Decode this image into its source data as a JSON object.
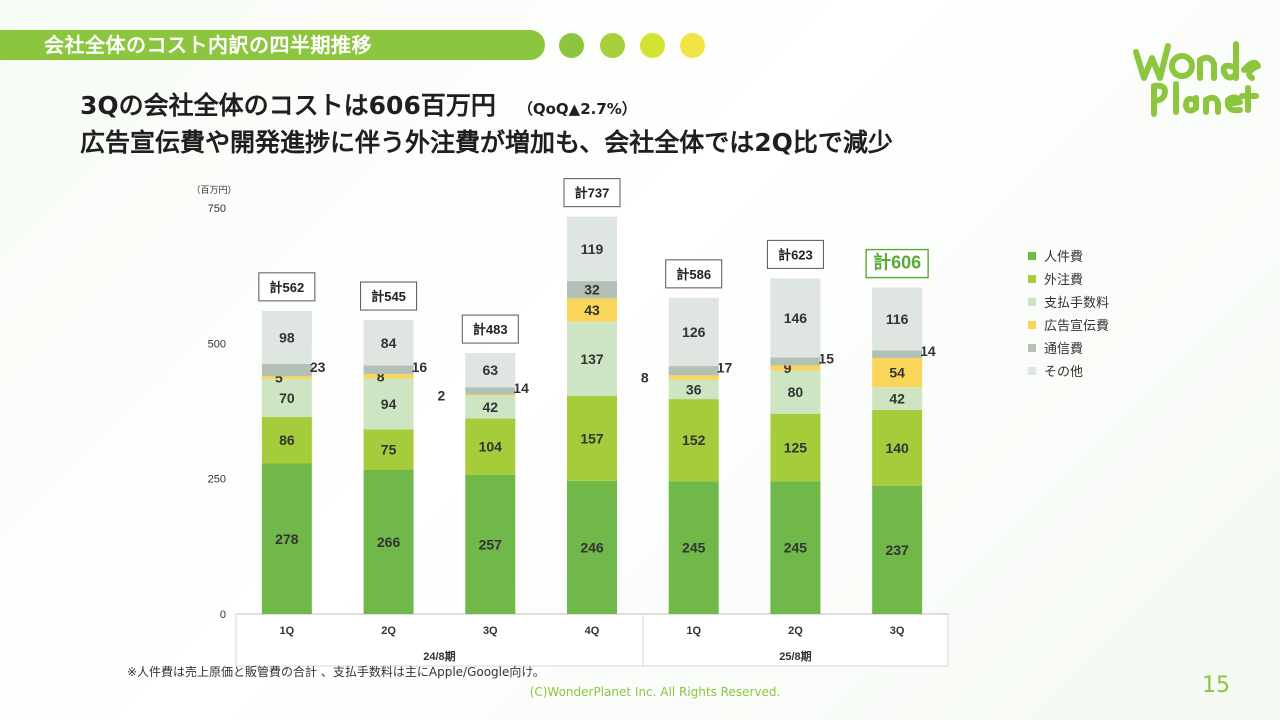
{
  "header": {
    "title": "会社全体のコスト内訳の四半期推移"
  },
  "header_dots": [
    "#8cc63f",
    "#a6cf3a",
    "#d4e333",
    "#f2e347"
  ],
  "logo": {
    "text": "Wonder Planet",
    "color": "#8cc63f"
  },
  "headline": {
    "line1": "3Qの会社全体のコストは606百万円",
    "qoq": "（QoQ▲2.7%）",
    "line2": "広告宣伝費や開発進捗に伴う外注費が増加も、会社全体では2Q比で減少"
  },
  "chart_data": {
    "type": "bar",
    "stacked": true,
    "unit_label": "（百万円）",
    "ylim": [
      0,
      750
    ],
    "yticks": [
      0,
      250,
      500,
      750
    ],
    "categories": [
      "1Q",
      "2Q",
      "3Q",
      "4Q",
      "1Q",
      "2Q",
      "3Q"
    ],
    "groups": [
      {
        "label": "24/8期",
        "categories": [
          "1Q",
          "2Q",
          "3Q",
          "4Q"
        ]
      },
      {
        "label": "25/8期",
        "categories": [
          "1Q",
          "2Q",
          "3Q"
        ]
      }
    ],
    "series": [
      {
        "name": "人件費",
        "color": "#70b84a",
        "values": [
          278,
          266,
          257,
          246,
          245,
          245,
          237
        ]
      },
      {
        "name": "外注費",
        "color": "#a5cc3a",
        "values": [
          86,
          75,
          104,
          157,
          152,
          125,
          140
        ]
      },
      {
        "name": "支払手数料",
        "color": "#cde5c3",
        "values": [
          70,
          94,
          42,
          137,
          36,
          80,
          42
        ]
      },
      {
        "name": "広告宣伝費",
        "color": "#f9d65a",
        "values": [
          5,
          8,
          2,
          43,
          8,
          9,
          54
        ]
      },
      {
        "name": "通信費",
        "color": "#b3c0b5",
        "values": [
          23,
          16,
          14,
          32,
          17,
          15,
          14
        ]
      },
      {
        "name": "その他",
        "color": "#dfe6e1",
        "values": [
          98,
          84,
          63,
          119,
          126,
          146,
          116
        ]
      }
    ],
    "totals": [
      "計562",
      "計545",
      "計483",
      "計737",
      "計586",
      "計623",
      "計606"
    ],
    "highlight_index": 6,
    "highlight_color": "#5aaa32"
  },
  "footnote": "※人件費は売上原価と販管費の合計 、支払手数料は主にApple/Google向け。",
  "copyright": "(C)WonderPlanet Inc.  All Rights Reserved.",
  "page_number": "15"
}
